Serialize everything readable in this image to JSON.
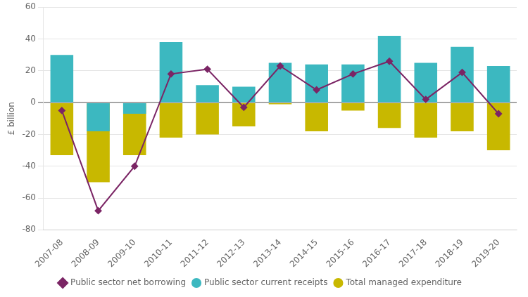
{
  "chart_data": {
    "type": "bar",
    "categories": [
      "2007-08",
      "2008-09",
      "2009-10",
      "2010-11",
      "2011-12",
      "2012-13",
      "2013-14",
      "2014-15",
      "2015-16",
      "2016-17",
      "2017-18",
      "2018-19",
      "2019-20"
    ],
    "series": [
      {
        "name": "Public sector current receipts",
        "color": "#3cb8c0",
        "values": [
          30,
          -18,
          -7,
          38,
          11,
          10,
          25,
          24,
          24,
          42,
          25,
          35,
          23
        ]
      },
      {
        "name": "Total managed expenditure",
        "color": "#c8b800",
        "values": [
          -33,
          -50,
          -33,
          -22,
          -20,
          -15,
          -1,
          -18,
          -5,
          -16,
          -22,
          -18,
          -30
        ]
      },
      {
        "name": "Public sector net borrowing",
        "type": "line",
        "color": "#7b2565",
        "marker": "diamond",
        "values": [
          -5,
          -68,
          -40,
          18,
          21,
          -3,
          23,
          8,
          18,
          26,
          2,
          19,
          -7
        ]
      }
    ],
    "ylabel": "£ billion",
    "ylim": [
      -80,
      60
    ],
    "yticks": [
      -80,
      -60,
      -40,
      -20,
      0,
      20,
      40,
      60
    ],
    "grid": true,
    "legend": "bottom"
  }
}
